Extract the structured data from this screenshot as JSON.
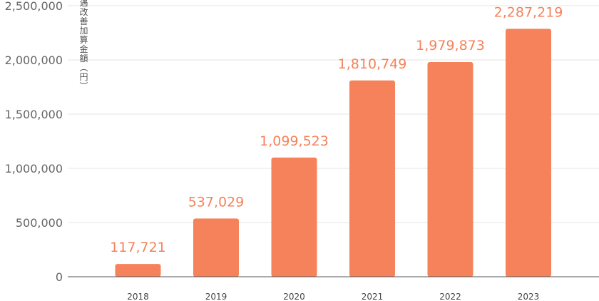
{
  "chart_data": {
    "type": "bar",
    "categories": [
      "2018",
      "2019",
      "2020",
      "2021",
      "2022",
      "2023"
    ],
    "values": [
      117721,
      537029,
      1099523,
      1810749,
      1979873,
      2287219
    ],
    "data_labels": [
      "117,721",
      "537,029",
      "1,099,523",
      "1,810,749",
      "1,979,873",
      "2,287,219"
    ],
    "ylabel": "処遇改善加算金額（円）",
    "xlabel": "",
    "title": "",
    "ylim": [
      0,
      2500000
    ],
    "yticks": [
      0,
      500000,
      1000000,
      1500000,
      2000000,
      2500000
    ],
    "ytick_labels": [
      "0",
      "500,000",
      "1,000,000",
      "1,500,000",
      "2,000,000",
      "2,500,000"
    ],
    "grid": true,
    "colors": {
      "bar": "#f5825a",
      "label": "#f5825a",
      "grid": "#e6e6e6",
      "axis": "#555555"
    }
  }
}
